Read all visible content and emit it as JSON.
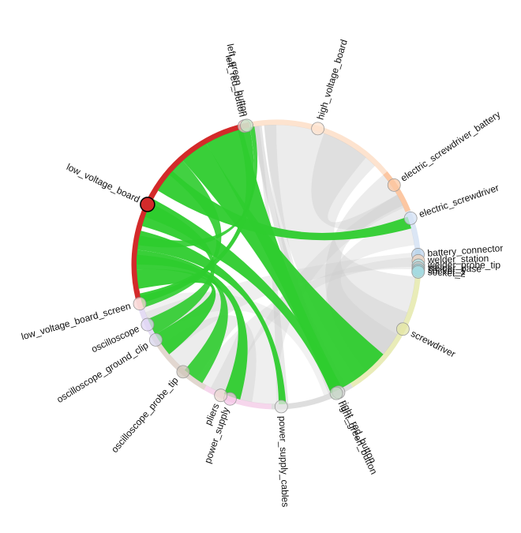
{
  "colors": {
    "highlight_node": "#d32a2a",
    "highlight_chord": "#2ecc2e",
    "background_chord": "#c9c9c9"
  },
  "highlighted_node": "low_voltage_board",
  "nodes": [
    {
      "label": "left_red_button",
      "color": "#f5c6c6"
    },
    {
      "label": "left_green_button",
      "color": "#c8e6c9"
    },
    {
      "label": "high_voltage_board",
      "color": "#fde3cf"
    },
    {
      "label": "electric_screwdriver_battery",
      "color": "#fcc7a2"
    },
    {
      "label": "electric_screwdriver",
      "color": "#d4e1f4"
    },
    {
      "label": "battery_connector",
      "color": "#bcd3ec"
    },
    {
      "label": "welder_station",
      "color": "#f4d6bd"
    },
    {
      "label": "welder_probe_tip",
      "color": "#aee3ea"
    },
    {
      "label": "welder_base",
      "color": "#c6c6c6"
    },
    {
      "label": "socket_1",
      "color": "#8fd3dc"
    },
    {
      "label": "socket_2",
      "color": "#a9dde3"
    },
    {
      "label": "screwdriver",
      "color": "#e3e6a6"
    },
    {
      "label": "right_red_button",
      "color": "#d6d6d6"
    },
    {
      "label": "right_green_button",
      "color": "#c8d8c8"
    },
    {
      "label": "power_supply_cables",
      "color": "#e5e5e5"
    },
    {
      "label": "power_supply",
      "color": "#f4c6e7"
    },
    {
      "label": "pliers",
      "color": "#ead8d2"
    },
    {
      "label": "oscilloscope_probe_tip",
      "color": "#cfc5b9"
    },
    {
      "label": "oscilloscope_ground_clip",
      "color": "#d8d6ec"
    },
    {
      "label": "oscilloscope",
      "color": "#e0d6f4"
    },
    {
      "label": "low_voltage_board_screen",
      "color": "#f8d6d4"
    },
    {
      "label": "low_voltage_board",
      "color": "#d32a2a"
    }
  ]
}
